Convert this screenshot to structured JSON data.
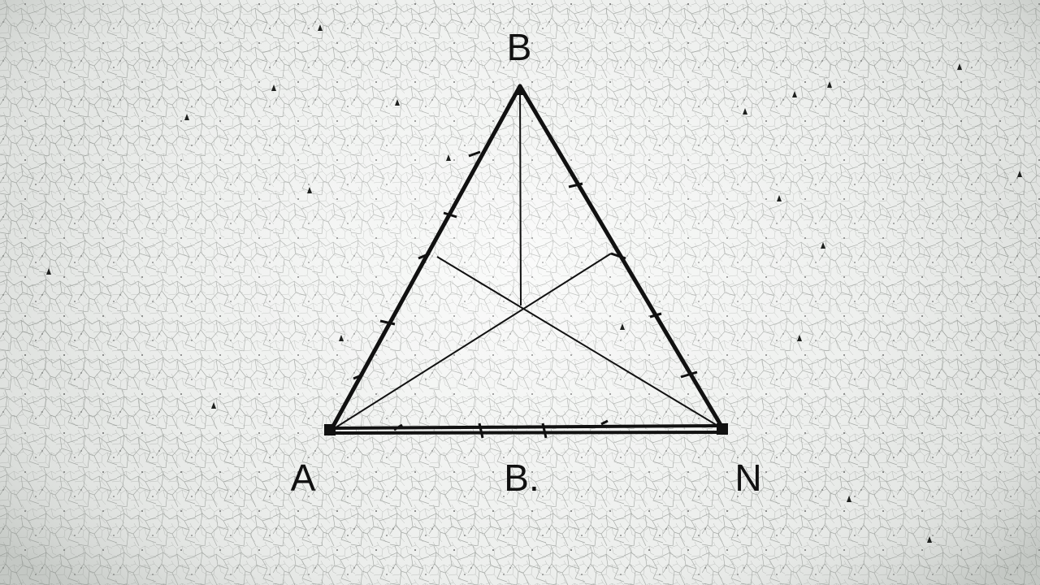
{
  "labels": {
    "top": "B",
    "bottom_left": "A",
    "bottom_middle": "B.",
    "bottom_right": "N"
  },
  "colors": {
    "line": "#111111",
    "background": "#eef0ee",
    "texture": "#5a5e5a"
  }
}
